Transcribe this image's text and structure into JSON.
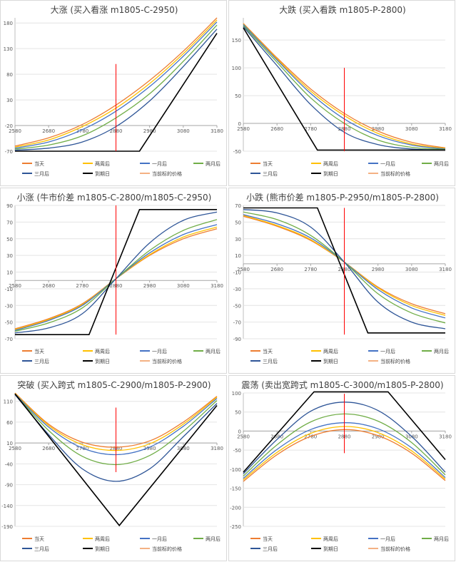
{
  "colors": {
    "当天": "#ed7d31",
    "两周后": "#ffc000",
    "一月后": "#4472c4",
    "两月后": "#70ad47",
    "三月后": "#2e5597",
    "到期日": "#000000",
    "当前标的价格": "#f4b183",
    "current_price_line": "#ff0000"
  },
  "chart_data": [
    {
      "type": "line",
      "title": "大涨 (买入看涨 m1805-C-2950)",
      "xlabel": "",
      "ylabel": "",
      "xlim": [
        2580,
        3180
      ],
      "ylim": [
        -70,
        190
      ],
      "xticks": [
        2580,
        2680,
        2780,
        2880,
        2980,
        3080,
        3180
      ],
      "yticks": [
        -70,
        -20,
        30,
        80,
        130,
        180
      ],
      "xaxis_at_y": -20,
      "current_price_line": {
        "x": 2880,
        "y0": -70,
        "y1": 100
      },
      "legend_position": "bottom",
      "legend": [
        "当天",
        "两周后",
        "一月后",
        "两月后",
        "三月后",
        "到期日",
        "当前标的价格"
      ],
      "series": [
        {
          "name": "当天",
          "x": [
            2580,
            2680,
            2780,
            2880,
            2980,
            3080,
            3180
          ],
          "y": [
            -60,
            -44,
            -18,
            20,
            68,
            125,
            190
          ]
        },
        {
          "name": "两周后",
          "x": [
            2580,
            2680,
            2780,
            2880,
            2980,
            3080,
            3180
          ],
          "y": [
            -62,
            -48,
            -22,
            14,
            62,
            120,
            186
          ]
        },
        {
          "name": "一月后",
          "x": [
            2580,
            2680,
            2780,
            2880,
            2980,
            3080,
            3180
          ],
          "y": [
            -64,
            -52,
            -28,
            8,
            56,
            115,
            182
          ]
        },
        {
          "name": "两月后",
          "x": [
            2580,
            2680,
            2780,
            2880,
            2980,
            3080,
            3180
          ],
          "y": [
            -66,
            -58,
            -40,
            -5,
            42,
            105,
            176
          ]
        },
        {
          "name": "三月后",
          "x": [
            2580,
            2680,
            2780,
            2880,
            2980,
            3080,
            3180
          ],
          "y": [
            -68,
            -64,
            -52,
            -22,
            28,
            95,
            168
          ]
        },
        {
          "name": "到期日",
          "x": [
            2580,
            2950,
            3180
          ],
          "y": [
            -70,
            -70,
            160
          ]
        }
      ]
    },
    {
      "type": "line",
      "title": "大跌 (买入看跌 m1805-P-2800)",
      "xlabel": "",
      "ylabel": "",
      "xlim": [
        2580,
        3180
      ],
      "ylim": [
        -50,
        190
      ],
      "xticks": [
        2580,
        2680,
        2780,
        2880,
        2980,
        3080,
        3180
      ],
      "yticks": [
        -50,
        0,
        50,
        100,
        150
      ],
      "xaxis_at_y": 0,
      "current_price_line": {
        "x": 2880,
        "y0": -50,
        "y1": 100
      },
      "legend_position": "bottom",
      "legend": [
        "当天",
        "两周后",
        "一月后",
        "两月后",
        "三月后",
        "到期日",
        "当前标的价格"
      ],
      "series": [
        {
          "name": "当天",
          "x": [
            2580,
            2680,
            2780,
            2880,
            2980,
            3080,
            3180
          ],
          "y": [
            180,
            118,
            62,
            18,
            -14,
            -34,
            -44
          ]
        },
        {
          "name": "两周后",
          "x": [
            2580,
            2680,
            2780,
            2880,
            2980,
            3080,
            3180
          ],
          "y": [
            179,
            116,
            58,
            14,
            -18,
            -37,
            -45
          ]
        },
        {
          "name": "一月后",
          "x": [
            2580,
            2680,
            2780,
            2880,
            2980,
            3080,
            3180
          ],
          "y": [
            178,
            114,
            54,
            8,
            -22,
            -39,
            -46
          ]
        },
        {
          "name": "两月后",
          "x": [
            2580,
            2680,
            2780,
            2880,
            2980,
            3080,
            3180
          ],
          "y": [
            176,
            110,
            46,
            0,
            -30,
            -43,
            -47
          ]
        },
        {
          "name": "三月后",
          "x": [
            2580,
            2680,
            2780,
            2880,
            2980,
            3080,
            3180
          ],
          "y": [
            174,
            104,
            34,
            -16,
            -38,
            -46,
            -48
          ]
        },
        {
          "name": "到期日",
          "x": [
            2580,
            2800,
            3180
          ],
          "y": [
            172,
            -48,
            -48
          ]
        }
      ]
    },
    {
      "type": "line",
      "title": "小涨 (牛市价差 m1805-C-2800/m1805-C-2950)",
      "xlabel": "",
      "ylabel": "",
      "xlim": [
        2580,
        3180
      ],
      "ylim": [
        -70,
        90
      ],
      "xticks": [
        2580,
        2680,
        2780,
        2880,
        2980,
        3080,
        3180
      ],
      "yticks": [
        -70,
        -50,
        -30,
        -10,
        10,
        30,
        50,
        70,
        90
      ],
      "xaxis_at_y": 0,
      "current_price_line": {
        "x": 2880,
        "y0": -65,
        "y1": 90
      },
      "legend_position": "bottom",
      "legend": [
        "当天",
        "两周后",
        "一月后",
        "两月后",
        "三月后",
        "到期日",
        "当前标的价格"
      ],
      "series": [
        {
          "name": "当天",
          "x": [
            2580,
            2680,
            2780,
            2880,
            2980,
            3080,
            3180
          ],
          "y": [
            -58,
            -46,
            -28,
            2,
            30,
            50,
            62
          ]
        },
        {
          "name": "两周后",
          "x": [
            2580,
            2680,
            2780,
            2880,
            2980,
            3080,
            3180
          ],
          "y": [
            -59,
            -47,
            -29,
            2,
            31,
            52,
            64
          ]
        },
        {
          "name": "一月后",
          "x": [
            2580,
            2680,
            2780,
            2880,
            2980,
            3080,
            3180
          ],
          "y": [
            -60,
            -48,
            -30,
            2,
            33,
            55,
            67
          ]
        },
        {
          "name": "两月后",
          "x": [
            2580,
            2680,
            2780,
            2880,
            2980,
            3080,
            3180
          ],
          "y": [
            -61,
            -51,
            -33,
            2,
            36,
            60,
            73
          ]
        },
        {
          "name": "三月后",
          "x": [
            2580,
            2680,
            2780,
            2880,
            2980,
            3080,
            3180
          ],
          "y": [
            -63,
            -57,
            -40,
            2,
            45,
            72,
            82
          ]
        },
        {
          "name": "到期日",
          "x": [
            2580,
            2800,
            2950,
            3180
          ],
          "y": [
            -65,
            -65,
            85,
            85
          ]
        }
      ]
    },
    {
      "type": "line",
      "title": "小跌 (熊市价差 m1805-P-2950/m1805-P-2800)",
      "xlabel": "",
      "ylabel": "",
      "xlim": [
        2580,
        3180
      ],
      "ylim": [
        -90,
        70
      ],
      "xticks": [
        2580,
        2680,
        2780,
        2880,
        2980,
        3080,
        3180
      ],
      "yticks": [
        -90,
        -70,
        -50,
        -30,
        -10,
        10,
        30,
        50,
        70
      ],
      "xaxis_at_y": 0,
      "current_price_line": {
        "x": 2880,
        "y0": -85,
        "y1": 67
      },
      "legend_position": "bottom",
      "legend": [
        "当天",
        "两周后",
        "一月后",
        "两月后",
        "三月后",
        "到期日",
        "当前标的价格"
      ],
      "series": [
        {
          "name": "当天",
          "x": [
            2580,
            2680,
            2780,
            2880,
            2980,
            3080,
            3180
          ],
          "y": [
            57,
            45,
            28,
            2,
            -28,
            -48,
            -60
          ]
        },
        {
          "name": "两周后",
          "x": [
            2580,
            2680,
            2780,
            2880,
            2980,
            3080,
            3180
          ],
          "y": [
            58,
            46,
            29,
            2,
            -29,
            -50,
            -62
          ]
        },
        {
          "name": "一月后",
          "x": [
            2580,
            2680,
            2780,
            2880,
            2980,
            3080,
            3180
          ],
          "y": [
            59,
            48,
            31,
            2,
            -31,
            -53,
            -65
          ]
        },
        {
          "name": "两月后",
          "x": [
            2580,
            2680,
            2780,
            2880,
            2980,
            3080,
            3180
          ],
          "y": [
            62,
            53,
            34,
            2,
            -36,
            -59,
            -71
          ]
        },
        {
          "name": "三月后",
          "x": [
            2580,
            2680,
            2780,
            2880,
            2980,
            3080,
            3180
          ],
          "y": [
            65,
            61,
            44,
            2,
            -46,
            -70,
            -78
          ]
        },
        {
          "name": "到期日",
          "x": [
            2580,
            2800,
            2950,
            3180
          ],
          "y": [
            67,
            67,
            -83,
            -83
          ]
        }
      ]
    },
    {
      "type": "line",
      "title": "突破 (买入跨式 m1805-C-2900/m1805-P-2900)",
      "xlabel": "",
      "ylabel": "",
      "xlim": [
        2580,
        3180
      ],
      "ylim": [
        -190,
        130
      ],
      "xticks": [
        2580,
        2680,
        2780,
        2880,
        2980,
        3080,
        3180
      ],
      "yticks": [
        -190,
        -140,
        -90,
        -40,
        10,
        60,
        110
      ],
      "xaxis_at_y": 10,
      "current_price_line": {
        "x": 2880,
        "y0": -60,
        "y1": 95
      },
      "legend_position": "bottom",
      "legend": [
        "当天",
        "两周后",
        "一月后",
        "两月后",
        "三月后",
        "到期日",
        "当前标的价格"
      ],
      "series": [
        {
          "name": "当天",
          "x": [
            2580,
            2680,
            2780,
            2880,
            2980,
            3080,
            3180
          ],
          "y": [
            130,
            55,
            12,
            0,
            15,
            60,
            122
          ]
        },
        {
          "name": "两周后",
          "x": [
            2580,
            2680,
            2780,
            2880,
            2980,
            3080,
            3180
          ],
          "y": [
            129,
            52,
            6,
            -8,
            8,
            55,
            120
          ]
        },
        {
          "name": "一月后",
          "x": [
            2580,
            2680,
            2780,
            2880,
            2980,
            3080,
            3180
          ],
          "y": [
            128,
            48,
            -2,
            -18,
            0,
            50,
            117
          ]
        },
        {
          "name": "两月后",
          "x": [
            2580,
            2680,
            2780,
            2880,
            2980,
            3080,
            3180
          ],
          "y": [
            127,
            40,
            -22,
            -42,
            -20,
            38,
            112
          ]
        },
        {
          "name": "三月后",
          "x": [
            2580,
            2680,
            2780,
            2880,
            2980,
            3080,
            3180
          ],
          "y": [
            126,
            30,
            -52,
            -82,
            -52,
            25,
            105
          ]
        },
        {
          "name": "到期日",
          "x": [
            2580,
            2890,
            3180
          ],
          "y": [
            128,
            -188,
            100
          ]
        }
      ]
    },
    {
      "type": "line",
      "title": "震荡 (卖出宽跨式 m1805-C-3000/m1805-P-2800)",
      "xlabel": "",
      "ylabel": "",
      "xlim": [
        2580,
        3180
      ],
      "ylim": [
        -250,
        100
      ],
      "xticks": [
        2580,
        2680,
        2780,
        2880,
        2980,
        3080,
        3180
      ],
      "yticks": [
        -250,
        -200,
        -150,
        -100,
        -50,
        0,
        50,
        100
      ],
      "xaxis_at_y": 0,
      "current_price_line": {
        "x": 2880,
        "y0": -58,
        "y1": 98
      },
      "legend_position": "bottom",
      "legend": [
        "当天",
        "两周后",
        "一月后",
        "两月后",
        "三月后",
        "到期日",
        "当前标的价格"
      ],
      "series": [
        {
          "name": "当天",
          "x": [
            2580,
            2680,
            2780,
            2880,
            2980,
            3080,
            3180
          ],
          "y": [
            -132,
            -62,
            -14,
            4,
            -12,
            -58,
            -130
          ]
        },
        {
          "name": "两周后",
          "x": [
            2580,
            2680,
            2780,
            2880,
            2980,
            3080,
            3180
          ],
          "y": [
            -128,
            -56,
            -6,
            12,
            -4,
            -52,
            -126
          ]
        },
        {
          "name": "一月后",
          "x": [
            2580,
            2680,
            2780,
            2880,
            2980,
            3080,
            3180
          ],
          "y": [
            -124,
            -48,
            4,
            22,
            6,
            -44,
            -122
          ]
        },
        {
          "name": "两月后",
          "x": [
            2580,
            2680,
            2780,
            2880,
            2980,
            3080,
            3180
          ],
          "y": [
            -118,
            -36,
            24,
            45,
            26,
            -30,
            -115
          ]
        },
        {
          "name": "三月后",
          "x": [
            2580,
            2680,
            2780,
            2880,
            2980,
            3080,
            3180
          ],
          "y": [
            -112,
            -22,
            52,
            76,
            54,
            -14,
            -108
          ]
        },
        {
          "name": "到期日",
          "x": [
            2580,
            2790,
            3010,
            3180
          ],
          "y": [
            -108,
            103,
            103,
            -75
          ]
        }
      ]
    }
  ]
}
